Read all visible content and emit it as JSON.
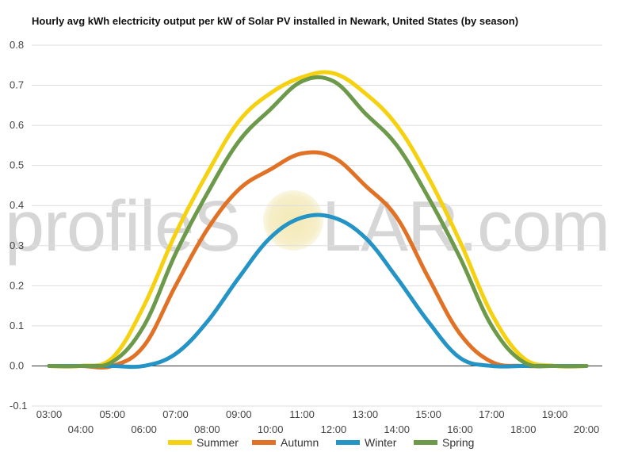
{
  "chart_data": {
    "type": "line",
    "title": "Hourly avg kWh electricity output per kW of Solar PV installed in Newark, United States (by season)",
    "xlabel": "",
    "ylabel": "",
    "ylim": [
      -0.1,
      0.8
    ],
    "yticks": [
      "0.8",
      "0.7",
      "0.6",
      "0.5",
      "0.4",
      "0.3",
      "0.2",
      "0.1",
      "0.0",
      "-0.1"
    ],
    "categories": [
      "03:00",
      "04:00",
      "05:00",
      "06:00",
      "07:00",
      "08:00",
      "09:00",
      "10:00",
      "11:00",
      "12:00",
      "13:00",
      "14:00",
      "15:00",
      "16:00",
      "17:00",
      "18:00",
      "19:00",
      "20:00"
    ],
    "grid": true,
    "legend_position": "bottom",
    "series": [
      {
        "name": "Summer",
        "color": "#f5d10f",
        "values": [
          0.0,
          0.0,
          0.02,
          0.15,
          0.33,
          0.48,
          0.61,
          0.68,
          0.72,
          0.73,
          0.68,
          0.6,
          0.47,
          0.31,
          0.13,
          0.02,
          0.0,
          0.0
        ]
      },
      {
        "name": "Autumn",
        "color": "#e07125",
        "values": [
          0.0,
          0.0,
          0.0,
          0.05,
          0.2,
          0.34,
          0.44,
          0.49,
          0.53,
          0.52,
          0.45,
          0.37,
          0.22,
          0.08,
          0.01,
          0.0,
          0.0,
          0.0
        ]
      },
      {
        "name": "Winter",
        "color": "#2493c6",
        "values": [
          0.0,
          0.0,
          0.0,
          0.0,
          0.03,
          0.11,
          0.22,
          0.32,
          0.37,
          0.37,
          0.32,
          0.22,
          0.11,
          0.02,
          0.0,
          0.0,
          0.0,
          0.0
        ]
      },
      {
        "name": "Spring",
        "color": "#6c9a4a",
        "values": [
          0.0,
          0.0,
          0.01,
          0.1,
          0.28,
          0.43,
          0.56,
          0.64,
          0.71,
          0.71,
          0.63,
          0.55,
          0.42,
          0.27,
          0.1,
          0.01,
          0.0,
          0.0
        ]
      }
    ]
  }
}
